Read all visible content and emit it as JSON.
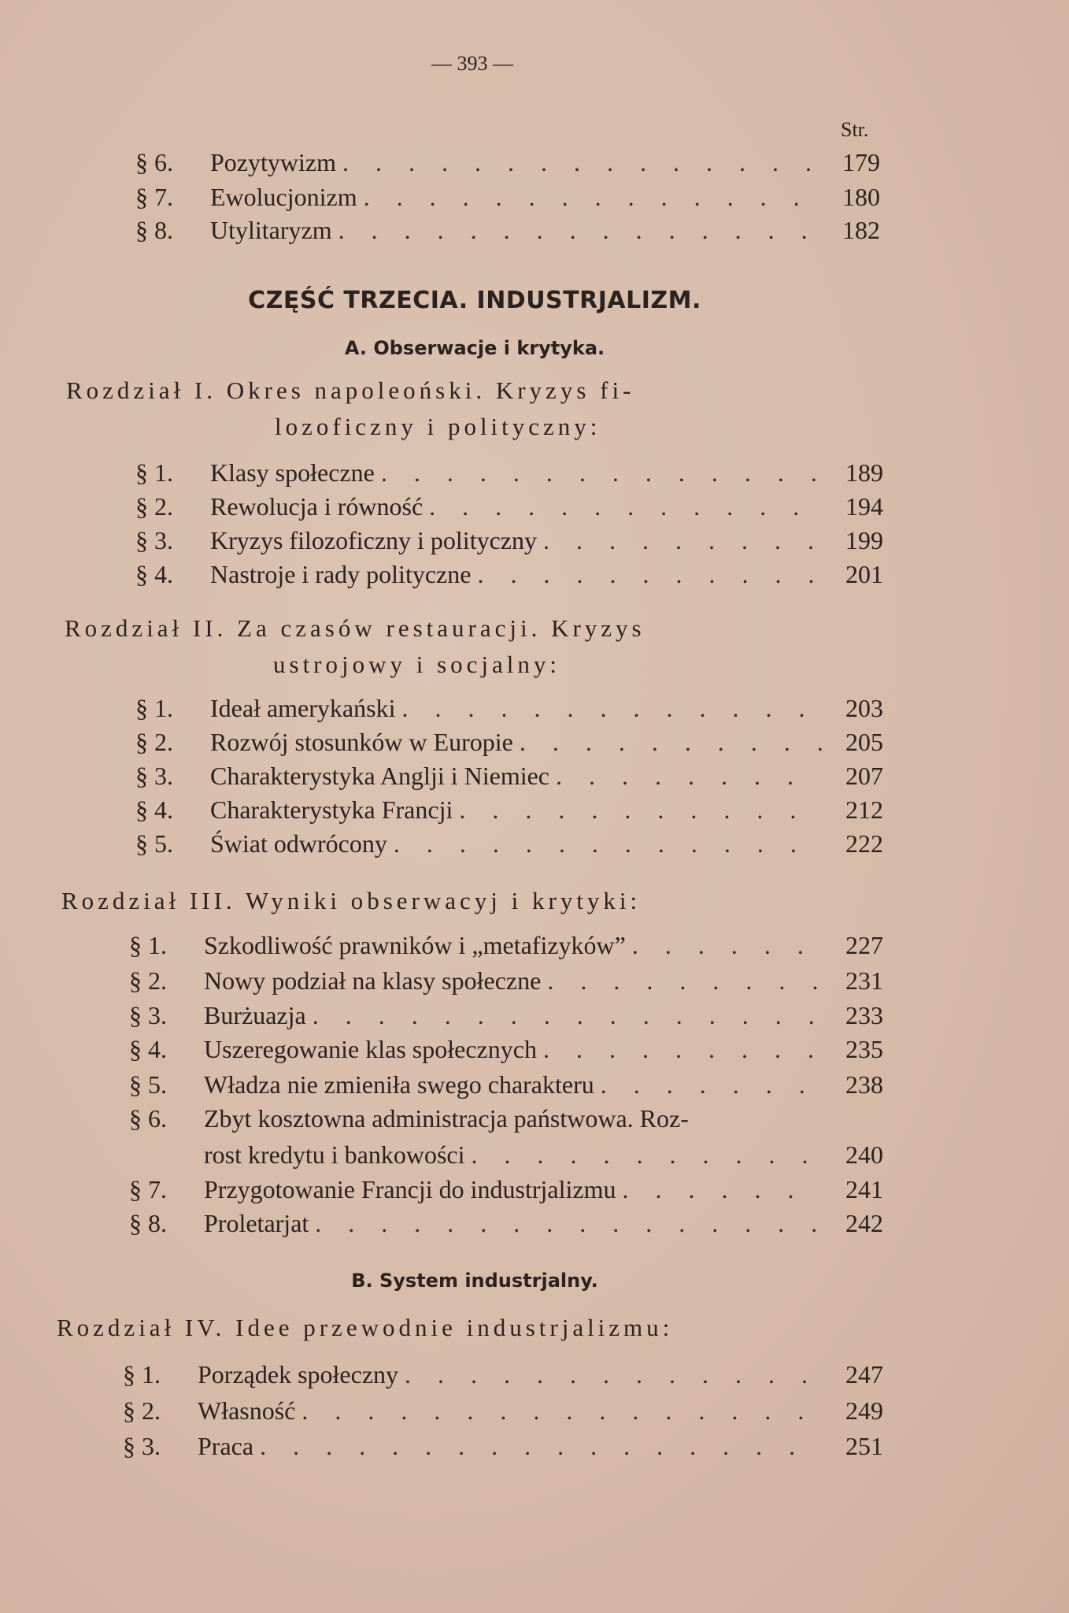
{
  "page_number": "— 393 —",
  "pages_header": "Str.",
  "top_entries": [
    {
      "num": "§ 6.",
      "title": "Pozytywizm",
      "page": "179"
    },
    {
      "num": "§ 7.",
      "title": "Ewolucjonizm",
      "page": "180"
    },
    {
      "num": "§ 8.",
      "title": "Utylitaryzm",
      "page": "182"
    }
  ],
  "part_title": "CZĘŚĆ TRZECIA. INDUSTRJALIZM.",
  "section_a": "A. Obserwacje i krytyka.",
  "section_b": "B. System industrjalny.",
  "chapters": [
    {
      "lines": [
        "Rozdział I. Okres napoleoński. Kryzys fi-",
        "lozoficzny i polityczny:"
      ],
      "entries": [
        {
          "num": "§ 1.",
          "title": "Klasy społeczne",
          "page": "189"
        },
        {
          "num": "§ 2.",
          "title": "Rewolucja i równość",
          "page": "194"
        },
        {
          "num": "§ 3.",
          "title": "Kryzys filozoficzny i polityczny",
          "page": "199"
        },
        {
          "num": "§ 4.",
          "title": "Nastroje i rady polityczne",
          "page": "201"
        }
      ]
    },
    {
      "lines": [
        "Rozdział II. Za czasów restauracji. Kryzys",
        "ustrojowy i socjalny:"
      ],
      "entries": [
        {
          "num": "§ 1.",
          "title": "Ideał amerykański",
          "page": "203"
        },
        {
          "num": "§ 2.",
          "title": "Rozwój stosunków w Europie",
          "page": "205"
        },
        {
          "num": "§ 3.",
          "title": "Charakterystyka Anglji i Niemiec",
          "page": "207"
        },
        {
          "num": "§ 4.",
          "title": "Charakterystyka Francji",
          "page": "212"
        },
        {
          "num": "§ 5.",
          "title": "Świat odwrócony",
          "page": "222"
        }
      ]
    },
    {
      "lines": [
        "Rozdział III. Wyniki obserwacyj i krytyki:"
      ],
      "entries": [
        {
          "num": "§ 1.",
          "title": "Szkodliwość prawników i „metafizyków”",
          "page": "227"
        },
        {
          "num": "§ 2.",
          "title": "Nowy podział na klasy społeczne",
          "page": "231"
        },
        {
          "num": "§ 3.",
          "title": "Burżuazja",
          "page": "233"
        },
        {
          "num": "§ 4.",
          "title": "Uszeregowanie klas społecznych",
          "page": "235"
        },
        {
          "num": "§ 5.",
          "title": "Władza nie zmieniła swego charakteru",
          "page": "238"
        },
        {
          "num": "§ 6.",
          "title": "Zbyt kosztowna administracja państwowa. Roz-",
          "cont": "rost kredytu i bankowości",
          "page": "240"
        },
        {
          "num": "§ 7.",
          "title": "Przygotowanie Francji do industrjalizmu",
          "page": "241"
        },
        {
          "num": "§ 8.",
          "title": "Proletarjat",
          "page": "242"
        }
      ]
    },
    {
      "lines": [
        "Rozdział IV. Idee przewodnie industrjalizmu:"
      ],
      "entries": [
        {
          "num": "§ 1.",
          "title": "Porządek społeczny",
          "page": "247"
        },
        {
          "num": "§ 2.",
          "title": "Własność",
          "page": "249"
        },
        {
          "num": "§ 3.",
          "title": "Praca",
          "page": "251"
        }
      ]
    }
  ]
}
